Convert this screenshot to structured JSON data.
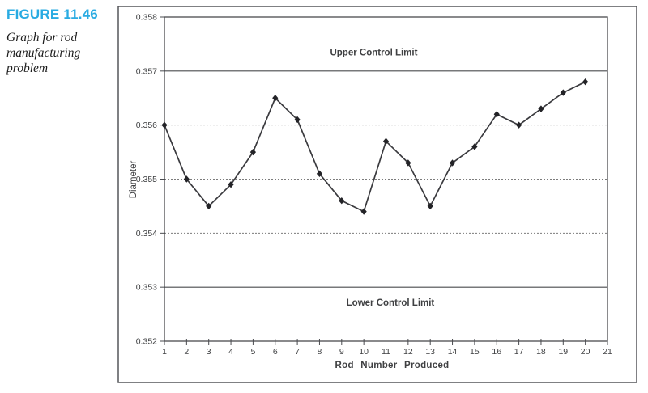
{
  "caption": {
    "figure_label": "FIGURE 11.46",
    "description": "Graph for rod manufacturing problem",
    "label_color": "#29abe2"
  },
  "chart_data": {
    "type": "line",
    "title": "",
    "xlabel": "Rod Number Produced",
    "ylabel": "Diameter",
    "xlim": [
      1,
      21
    ],
    "ylim": [
      0.352,
      0.358
    ],
    "grid_on": true,
    "legend_position": "none",
    "marker": "diamond",
    "line_color": "#3a3a3e",
    "x": [
      1,
      2,
      3,
      4,
      5,
      6,
      7,
      8,
      9,
      10,
      11,
      12,
      13,
      14,
      15,
      16,
      17,
      18,
      19,
      20
    ],
    "values": [
      0.356,
      0.355,
      0.3545,
      0.3549,
      0.3555,
      0.3565,
      0.3561,
      0.3551,
      0.3546,
      0.3544,
      0.3557,
      0.3553,
      0.3545,
      0.3553,
      0.3556,
      0.3562,
      0.356,
      0.3563,
      0.3566,
      0.3568
    ],
    "xtick_values": [
      1,
      2,
      3,
      4,
      5,
      6,
      7,
      8,
      9,
      10,
      11,
      12,
      13,
      14,
      15,
      16,
      17,
      18,
      19,
      20,
      21
    ],
    "xtick_labels": [
      "1",
      "2",
      "3",
      "4",
      "5",
      "6",
      "7",
      "8",
      "9",
      "10",
      "11",
      "12",
      "13",
      "14",
      "15",
      "16",
      "17",
      "18",
      "19",
      "20",
      "21"
    ],
    "ytick_values": [
      0.352,
      0.353,
      0.354,
      0.355,
      0.356,
      0.357,
      0.358
    ],
    "ytick_labels": [
      "0.352",
      "0.353",
      "0.354",
      "0.355",
      "0.356",
      "0.357",
      "0.358"
    ],
    "solid_gridlines": [
      0.353,
      0.357
    ],
    "dashed_gridlines": [
      0.354,
      0.355,
      0.356
    ],
    "annotations": [
      {
        "text": "Upper Control Limit",
        "x": 10.45,
        "y": 0.35735
      },
      {
        "text": "Lower Control Limit",
        "x": 11.2,
        "y": 0.35272
      }
    ]
  }
}
